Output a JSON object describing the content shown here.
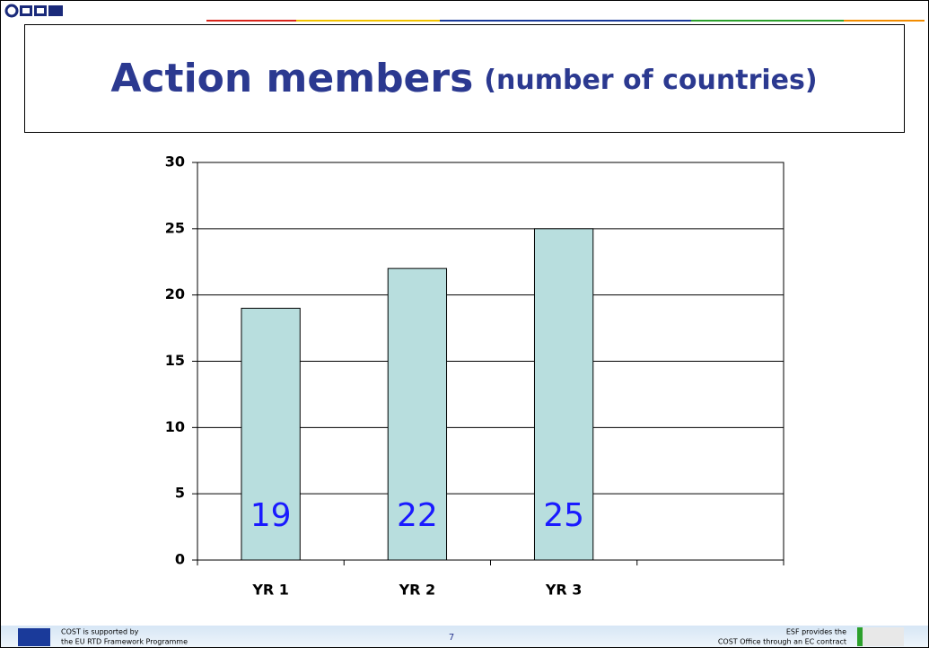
{
  "title_main": "Action members",
  "title_sub": "(number of countries)",
  "chart_data": {
    "type": "bar",
    "categories": [
      "YR 1",
      "YR 2",
      "YR 3",
      null
    ],
    "values": [
      19,
      22,
      25,
      null
    ],
    "color": "#b8dede",
    "label_color": "#1a1aff",
    "ylim": [
      0,
      30
    ],
    "yticks": [
      0,
      5,
      10,
      15,
      20,
      25,
      30
    ],
    "grid": true
  },
  "footer": {
    "left_1": "COST is supported by",
    "left_2": "the EU RTD Framework Programme",
    "page": "7",
    "right_1": "ESF provides the",
    "right_2": "COST Office through an EC contract"
  }
}
